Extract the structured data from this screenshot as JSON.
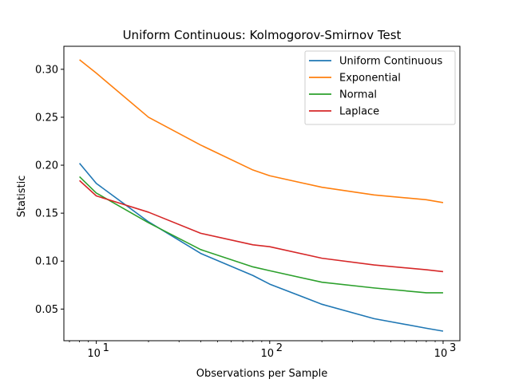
{
  "chart_data": {
    "type": "line",
    "title": "Uniform Continuous: Kolmogorov-Smirnov Test",
    "xlabel": "Observations per Sample",
    "ylabel": "Statistic",
    "xscale": "log",
    "xlim": [
      6.5,
      1250
    ],
    "ylim": [
      0.017,
      0.324
    ],
    "x_ticks": [
      {
        "value": 10,
        "base": "10",
        "exp": "1"
      },
      {
        "value": 100,
        "base": "10",
        "exp": "2"
      },
      {
        "value": 1000,
        "base": "10",
        "exp": "3"
      }
    ],
    "y_ticks": [
      {
        "value": 0.05,
        "label": "0.05"
      },
      {
        "value": 0.1,
        "label": "0.10"
      },
      {
        "value": 0.15,
        "label": "0.15"
      },
      {
        "value": 0.2,
        "label": "0.20"
      },
      {
        "value": 0.25,
        "label": "0.25"
      },
      {
        "value": 0.3,
        "label": "0.30"
      }
    ],
    "grid": false,
    "legend_position": "top-right",
    "x": [
      8,
      10,
      20,
      40,
      80,
      100,
      200,
      400,
      800,
      1000
    ],
    "series": [
      {
        "name": "Uniform Continuous",
        "color": "#1f77b4",
        "values": [
          0.202,
          0.181,
          0.141,
          0.108,
          0.085,
          0.076,
          0.055,
          0.04,
          0.03,
          0.027
        ]
      },
      {
        "name": "Exponential",
        "color": "#ff7f0e",
        "values": [
          0.31,
          0.296,
          0.25,
          0.221,
          0.195,
          0.189,
          0.177,
          0.169,
          0.164,
          0.161
        ]
      },
      {
        "name": "Normal",
        "color": "#2ca02c",
        "values": [
          0.188,
          0.171,
          0.14,
          0.112,
          0.094,
          0.09,
          0.078,
          0.072,
          0.067,
          0.067
        ]
      },
      {
        "name": "Laplace",
        "color": "#d62728",
        "values": [
          0.184,
          0.168,
          0.151,
          0.129,
          0.117,
          0.115,
          0.103,
          0.096,
          0.091,
          0.089
        ]
      }
    ]
  }
}
